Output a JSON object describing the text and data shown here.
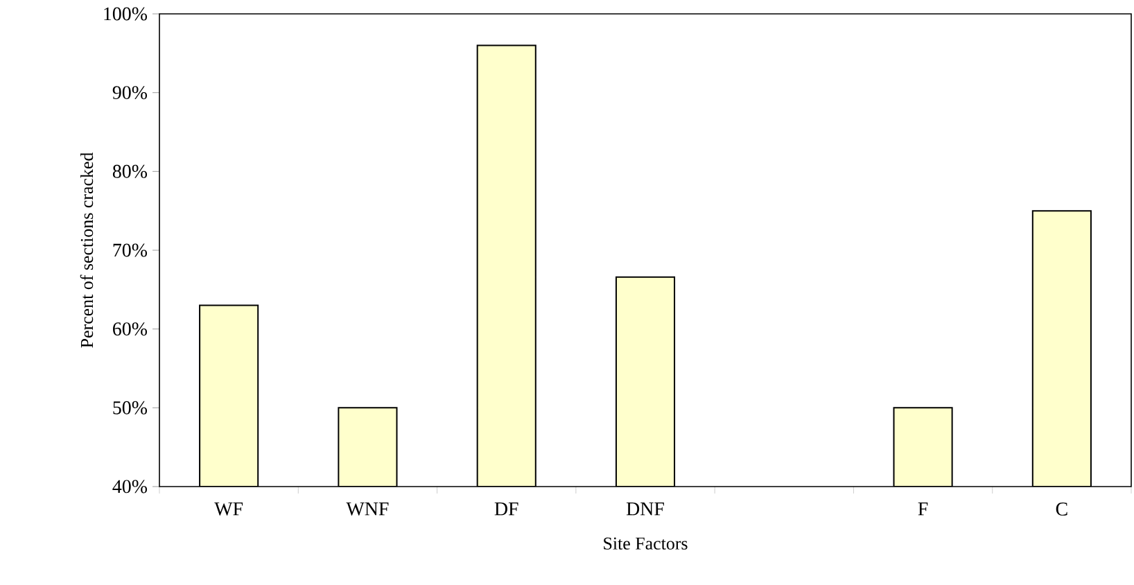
{
  "chart_data": {
    "type": "bar",
    "xlabel": "Site Factors",
    "ylabel": "Percent of sections cracked",
    "categories": [
      "WF",
      "WNF",
      "DF",
      "DNF",
      null,
      "F",
      "C"
    ],
    "values": [
      63,
      50,
      96,
      66.6,
      null,
      50,
      75
    ],
    "color": "#ffffcc",
    "ylim": [
      40,
      100
    ],
    "yticks": [
      {
        "value": 40,
        "label": "40%"
      },
      {
        "value": 50,
        "label": "50%"
      },
      {
        "value": 60,
        "label": "60%"
      },
      {
        "value": 70,
        "label": "70%"
      },
      {
        "value": 80,
        "label": "80%"
      },
      {
        "value": 90,
        "label": "90%"
      },
      {
        "value": 100,
        "label": "100%"
      }
    ],
    "grid": false
  }
}
